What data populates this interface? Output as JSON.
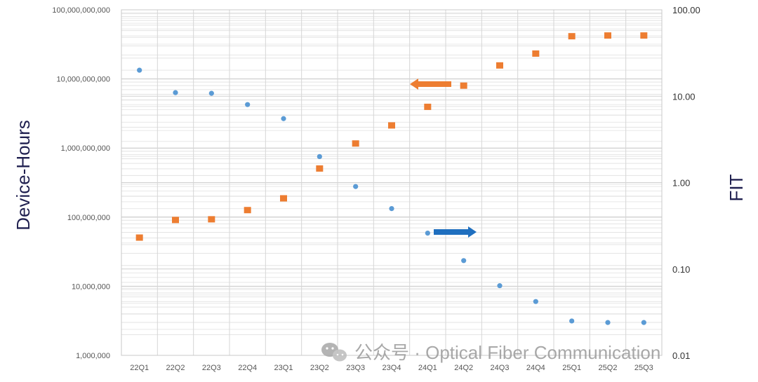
{
  "chart_data": {
    "type": "scatter",
    "categories": [
      "22Q1",
      "22Q2",
      "22Q3",
      "22Q4",
      "23Q1",
      "23Q2",
      "23Q3",
      "23Q4",
      "24Q1",
      "24Q2",
      "24Q3",
      "24Q4",
      "25Q1",
      "25Q2",
      "25Q3"
    ],
    "ylabel": "Device-Hours",
    "y2label": "FIT",
    "y_scale": "log",
    "y2_scale": "log",
    "ylim": [
      1000000,
      100000000000
    ],
    "y2lim": [
      0.01,
      100
    ],
    "y_ticks": [
      "1,000,000",
      "10,000,000",
      "100,000,000",
      "1,000,000,000",
      "10,000,000,000",
      "100,000,000,000"
    ],
    "y2_ticks": [
      "0.01",
      "0.10",
      "1.00",
      "10.00",
      "100.00"
    ],
    "grid": true,
    "series": [
      {
        "axis": "right",
        "color": "#5b9bd5",
        "marker": "circle",
        "values": [
          20,
          11,
          10.8,
          8,
          5.5,
          2,
          0.9,
          0.5,
          0.26,
          0.125,
          0.064,
          0.042,
          0.025,
          0.024,
          0.024
        ]
      },
      {
        "axis": "left",
        "color": "#ed7d31",
        "marker": "square",
        "values": [
          50000000,
          90000000,
          92000000,
          125000000,
          185000000,
          500000000,
          1150000000,
          2100000000,
          3900000000,
          7900000000,
          15500000000,
          23000000000,
          41000000000,
          42000000000,
          42000000000
        ]
      }
    ],
    "annotations": [
      {
        "type": "arrow",
        "direction": "left",
        "color": "#ed7d31",
        "meaning": "orange-series-uses-left-axis"
      },
      {
        "type": "arrow",
        "direction": "right",
        "color": "#1f6fbf",
        "meaning": "blue-series-uses-right-axis"
      }
    ]
  },
  "watermark": {
    "text": "公众号 · Optical Fiber Communication",
    "icon": "wechat-icon"
  }
}
